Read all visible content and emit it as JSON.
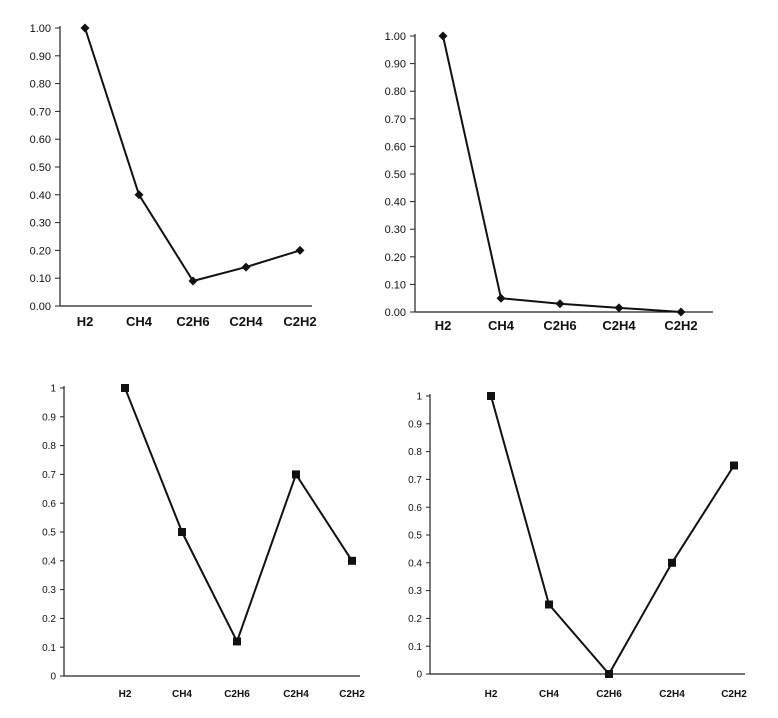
{
  "chart_data": [
    {
      "type": "line",
      "marker": "diamond",
      "categories": [
        "H2",
        "CH4",
        "C2H6",
        "C2H4",
        "C2H2"
      ],
      "series": [
        {
          "values": [
            1.0,
            0.4,
            0.09,
            0.14,
            0.2
          ]
        }
      ],
      "ylim": [
        0,
        1
      ],
      "yticks": [
        "0.00",
        "0.10",
        "0.20",
        "0.30",
        "0.40",
        "0.50",
        "0.60",
        "0.70",
        "0.80",
        "0.90",
        "1.00"
      ],
      "grid": false,
      "title": "",
      "xlabel": "",
      "ylabel": ""
    },
    {
      "type": "line",
      "marker": "diamond",
      "categories": [
        "H2",
        "CH4",
        "C2H6",
        "C2H4",
        "C2H2"
      ],
      "series": [
        {
          "values": [
            1.0,
            0.05,
            0.03,
            0.015,
            0.0
          ]
        }
      ],
      "ylim": [
        0,
        1
      ],
      "yticks": [
        "0.00",
        "0.10",
        "0.20",
        "0.30",
        "0.40",
        "0.50",
        "0.60",
        "0.70",
        "0.80",
        "0.90",
        "1.00"
      ],
      "grid": false,
      "title": "",
      "xlabel": "",
      "ylabel": ""
    },
    {
      "type": "line",
      "marker": "square",
      "categories": [
        "H2",
        "CH4",
        "C2H6",
        "C2H4",
        "C2H2"
      ],
      "series": [
        {
          "values": [
            1.0,
            0.5,
            0.12,
            0.7,
            0.4
          ]
        }
      ],
      "ylim": [
        0,
        1
      ],
      "yticks": [
        "0",
        "0.1",
        "0.2",
        "0.3",
        "0.4",
        "0.5",
        "0.6",
        "0.7",
        "0.8",
        "0.9",
        "1"
      ],
      "grid": false,
      "title": "",
      "xlabel": "",
      "ylabel": ""
    },
    {
      "type": "line",
      "marker": "square",
      "categories": [
        "H2",
        "CH4",
        "C2H6",
        "C2H4",
        "C2H2"
      ],
      "series": [
        {
          "values": [
            1.0,
            0.25,
            0.0,
            0.4,
            0.75
          ]
        }
      ],
      "ylim": [
        0,
        1
      ],
      "yticks": [
        "0",
        "0.1",
        "0.2",
        "0.3",
        "0.4",
        "0.5",
        "0.6",
        "0.7",
        "0.8",
        "0.9",
        "1"
      ],
      "grid": false,
      "title": "",
      "xlabel": "",
      "ylabel": ""
    }
  ]
}
